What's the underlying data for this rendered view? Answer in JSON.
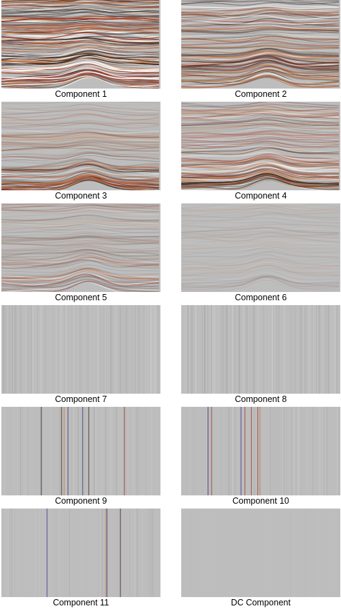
{
  "panels": [
    {
      "label": "Component 1",
      "style": "strong"
    },
    {
      "label": "Component 2",
      "style": "medium"
    },
    {
      "label": "Component 3",
      "style": "light-bottom"
    },
    {
      "label": "Component 4",
      "style": "medium-bottom"
    },
    {
      "label": "Component 5",
      "style": "faint"
    },
    {
      "label": "Component 6",
      "style": "very-faint"
    },
    {
      "label": "Component 7",
      "style": "vertical-faint"
    },
    {
      "label": "Component 8",
      "style": "vertical-faint"
    },
    {
      "label": "Component 9",
      "style": "vertical-spikes"
    },
    {
      "label": "Component 10",
      "style": "vertical-spikes"
    },
    {
      "label": "Component 11",
      "style": "vertical-sparse"
    },
    {
      "label": "DC Component",
      "style": "flat"
    }
  ],
  "colors": {
    "background": "#bdbdbd",
    "dark": "#3a2a22",
    "red": "#9c3a2a",
    "orange": "#c8743a",
    "blue": "#3a3a8a"
  }
}
